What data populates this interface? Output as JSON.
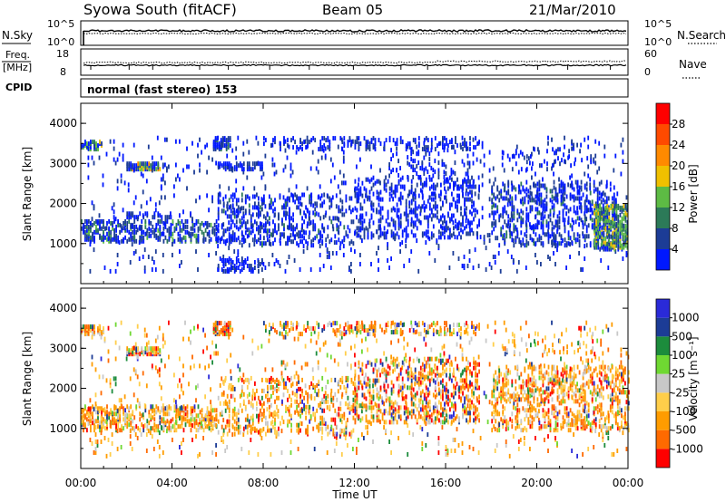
{
  "header": {
    "station": "Syowa South (fitACF)",
    "beam": "Beam 05",
    "date": "21/Mar/2010"
  },
  "top_panels": {
    "nsky_label": "N.Sky",
    "nsearch_label": "N.Search",
    "nsky_left_ticks": [
      "10^5",
      "10^0"
    ],
    "nsky_right_ticks": [
      "10^5",
      "10^0"
    ],
    "freq_label_1": "Freq.",
    "freq_label_2": "[MHz]",
    "freq_ticks": [
      "18",
      "8"
    ],
    "nave_ticks": [
      "60",
      "0"
    ],
    "nave_label": "Nave",
    "cpid_label": "CPID",
    "cpid_text": "normal (fast stereo) 153"
  },
  "colors": {
    "power": [
      "#0018ff",
      "#1c3c96",
      "#2c7a58",
      "#5dbb44",
      "#f0c000",
      "#ff8a00",
      "#ff4a00",
      "#ff0000"
    ],
    "velocity": [
      "#ff0000",
      "#ff6a00",
      "#ff9c00",
      "#ffce4a",
      "#c8c8c8",
      "#6fd832",
      "#1c8c3c",
      "#1c3c96",
      "#2a2ad8"
    ]
  },
  "chart_data": [
    {
      "type": "heatmap",
      "name_key": "power",
      "xlabel": "",
      "ylabel": "Slant Range [km]",
      "xlim_hours": [
        0,
        24
      ],
      "ylim_km": [
        0,
        4500
      ],
      "ytick_labels": [
        "1000",
        "2000",
        "3000",
        "4000"
      ],
      "ytick_values": [
        1000,
        2000,
        3000,
        4000
      ],
      "colorbar_label": "Power [dB]",
      "colorbar_ticks": [
        "4",
        "8",
        "12",
        "16",
        "20",
        "24",
        "28"
      ],
      "bands": [
        {
          "t0": 0.0,
          "t1": 1.0,
          "r0": 3300,
          "r1": 3500,
          "d": 0.5,
          "p": [
            0.2,
            0.2,
            0.2,
            0.3,
            0.3,
            0.1,
            0.0,
            0.0
          ]
        },
        {
          "t0": 2.0,
          "t1": 3.5,
          "r0": 2800,
          "r1": 2950,
          "d": 0.8,
          "p": [
            0.3,
            0.3,
            0.1,
            0.1,
            0.1,
            0.1,
            0.1,
            0.0
          ]
        },
        {
          "t0": 0.0,
          "t1": 6.0,
          "r0": 1000,
          "r1": 1500,
          "d": 0.35,
          "p": [
            0.4,
            0.4,
            0.15,
            0.05,
            0.0,
            0.0,
            0.0,
            0.0
          ]
        },
        {
          "t0": 2.0,
          "t1": 4.0,
          "r0": 1600,
          "r1": 1700,
          "d": 0.5,
          "p": [
            0.6,
            0.4,
            0.0,
            0.0,
            0.0,
            0.0,
            0.0,
            0.0
          ]
        },
        {
          "t0": 0.3,
          "t1": 24.0,
          "r0": 250,
          "r1": 3600,
          "d": 0.03,
          "p": [
            0.6,
            0.4,
            0.0,
            0.0,
            0.0,
            0.0,
            0.0,
            0.0
          ]
        },
        {
          "t0": 5.8,
          "t1": 6.6,
          "r0": 3300,
          "r1": 3600,
          "d": 0.7,
          "p": [
            0.5,
            0.4,
            0.1,
            0.0,
            0.0,
            0.0,
            0.0,
            0.0
          ]
        },
        {
          "t0": 6.0,
          "t1": 8.0,
          "r0": 2800,
          "r1": 2950,
          "d": 0.5,
          "p": [
            0.6,
            0.4,
            0.0,
            0.0,
            0.0,
            0.0,
            0.0,
            0.0
          ]
        },
        {
          "t0": 6.0,
          "t1": 12.0,
          "r0": 900,
          "r1": 2200,
          "d": 0.18,
          "p": [
            0.6,
            0.35,
            0.05,
            0.0,
            0.0,
            0.0,
            0.0,
            0.0
          ]
        },
        {
          "t0": 6.0,
          "t1": 8.0,
          "r0": 250,
          "r1": 600,
          "d": 0.3,
          "p": [
            0.6,
            0.4,
            0.0,
            0.0,
            0.0,
            0.0,
            0.0,
            0.0
          ]
        },
        {
          "t0": 8.0,
          "t1": 17.5,
          "r0": 3300,
          "r1": 3600,
          "d": 0.2,
          "p": [
            0.6,
            0.4,
            0.0,
            0.0,
            0.0,
            0.0,
            0.0,
            0.0
          ]
        },
        {
          "t0": 12.0,
          "t1": 17.5,
          "r0": 1100,
          "r1": 2600,
          "d": 0.2,
          "p": [
            0.7,
            0.3,
            0.0,
            0.0,
            0.0,
            0.0,
            0.0,
            0.0
          ]
        },
        {
          "t0": 13.5,
          "t1": 16.5,
          "r0": 2600,
          "r1": 3300,
          "d": 0.1,
          "p": [
            0.7,
            0.3,
            0.0,
            0.0,
            0.0,
            0.0,
            0.0,
            0.0
          ]
        },
        {
          "t0": 18.0,
          "t1": 23.5,
          "r0": 900,
          "r1": 2500,
          "d": 0.22,
          "p": [
            0.55,
            0.35,
            0.1,
            0.0,
            0.0,
            0.0,
            0.0,
            0.0
          ]
        },
        {
          "t0": 18.5,
          "t1": 22.5,
          "r0": 2800,
          "r1": 3300,
          "d": 0.08,
          "p": [
            0.6,
            0.4,
            0.0,
            0.0,
            0.0,
            0.0,
            0.0,
            0.0
          ]
        },
        {
          "t0": 22.5,
          "t1": 24.0,
          "r0": 800,
          "r1": 1900,
          "d": 0.6,
          "p": [
            0.1,
            0.2,
            0.3,
            0.3,
            0.1,
            0.0,
            0.0,
            0.0
          ]
        }
      ]
    },
    {
      "type": "heatmap",
      "name_key": "velocity",
      "xlabel": "Time UT",
      "ylabel": "Slant Range [km]",
      "xlim_hours": [
        0,
        24
      ],
      "xtick_labels": [
        "00:00",
        "04:00",
        "08:00",
        "12:00",
        "16:00",
        "20:00",
        "00:00"
      ],
      "xtick_values": [
        0,
        4,
        8,
        12,
        16,
        20,
        24
      ],
      "ylim_km": [
        0,
        4500
      ],
      "ytick_labels": [
        "1000",
        "2000",
        "3000",
        "4000"
      ],
      "ytick_values": [
        1000,
        2000,
        3000,
        4000
      ],
      "colorbar_label": "Velocity [m s⁻¹]",
      "colorbar_ticks": [
        "-1000",
        "-500",
        "-100",
        "-25",
        "25",
        "100",
        "500",
        "1000"
      ],
      "bands": [
        {
          "t0": 0.0,
          "t1": 1.0,
          "r0": 3300,
          "r1": 3500,
          "d": 0.5,
          "p": [
            0.05,
            0.1,
            0.2,
            0.2,
            0.3,
            0.05,
            0.05,
            0.05,
            0.0
          ]
        },
        {
          "t0": 2.0,
          "t1": 3.5,
          "r0": 2800,
          "r1": 2950,
          "d": 0.8,
          "p": [
            0.1,
            0.1,
            0.2,
            0.1,
            0.2,
            0.1,
            0.1,
            0.05,
            0.05
          ]
        },
        {
          "t0": 0.0,
          "t1": 6.0,
          "r0": 900,
          "r1": 1500,
          "d": 0.35,
          "p": [
            0.05,
            0.2,
            0.3,
            0.2,
            0.1,
            0.05,
            0.05,
            0.03,
            0.02
          ]
        },
        {
          "t0": 0.3,
          "t1": 24.0,
          "r0": 250,
          "r1": 3600,
          "d": 0.03,
          "p": [
            0.05,
            0.2,
            0.3,
            0.2,
            0.1,
            0.05,
            0.05,
            0.03,
            0.02
          ]
        },
        {
          "t0": 5.8,
          "t1": 6.6,
          "r0": 3300,
          "r1": 3600,
          "d": 0.7,
          "p": [
            0.3,
            0.2,
            0.2,
            0.1,
            0.05,
            0.05,
            0.05,
            0.05,
            0.0
          ]
        },
        {
          "t0": 6.0,
          "t1": 12.0,
          "r0": 800,
          "r1": 2200,
          "d": 0.18,
          "p": [
            0.05,
            0.15,
            0.3,
            0.25,
            0.1,
            0.05,
            0.05,
            0.03,
            0.02
          ]
        },
        {
          "t0": 8.0,
          "t1": 17.5,
          "r0": 3300,
          "r1": 3600,
          "d": 0.2,
          "p": [
            0.1,
            0.15,
            0.2,
            0.2,
            0.1,
            0.05,
            0.05,
            0.1,
            0.05
          ]
        },
        {
          "t0": 12.0,
          "t1": 17.5,
          "r0": 1100,
          "r1": 2700,
          "d": 0.22,
          "p": [
            0.15,
            0.15,
            0.2,
            0.15,
            0.1,
            0.05,
            0.05,
            0.1,
            0.05
          ]
        },
        {
          "t0": 18.0,
          "t1": 24.0,
          "r0": 900,
          "r1": 2500,
          "d": 0.25,
          "p": [
            0.1,
            0.2,
            0.3,
            0.2,
            0.1,
            0.03,
            0.03,
            0.02,
            0.02
          ]
        },
        {
          "t0": 18.5,
          "t1": 22.5,
          "r0": 2800,
          "r1": 3300,
          "d": 0.08,
          "p": [
            0.05,
            0.2,
            0.3,
            0.2,
            0.1,
            0.05,
            0.05,
            0.05,
            0.0
          ]
        }
      ]
    }
  ]
}
